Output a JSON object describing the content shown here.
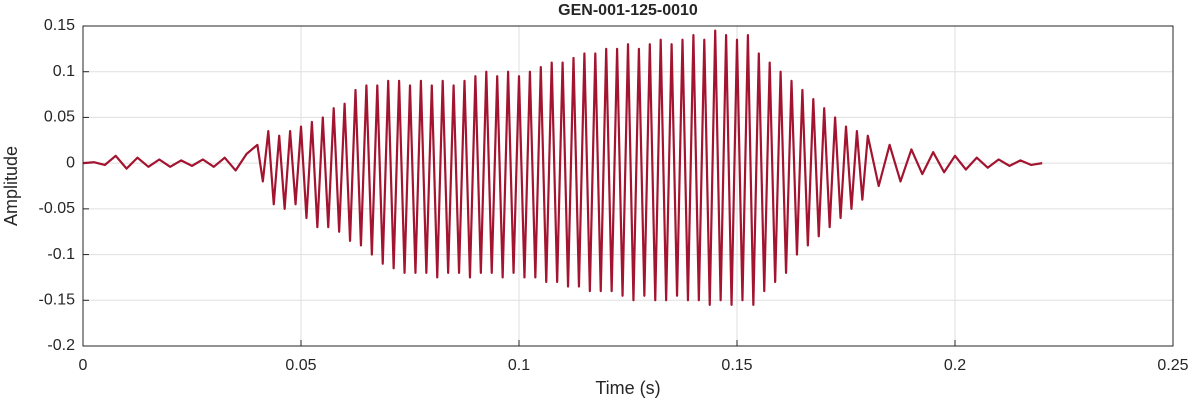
{
  "chart_data": {
    "type": "line",
    "title": "GEN-001-125-0010",
    "x_label": "Time (s)",
    "y_label": "Amplitude",
    "x": [
      0,
      0.0025,
      0.005,
      0.0075,
      0.01,
      0.0125,
      0.015,
      0.0175,
      0.02,
      0.0225,
      0.025,
      0.0275,
      0.03,
      0.0325,
      0.035,
      0.0375,
      0.04,
      0.04125,
      0.0425,
      0.04375,
      0.045,
      0.04625,
      0.0475,
      0.04875,
      0.05,
      0.05125,
      0.0525,
      0.05375,
      0.055,
      0.05625,
      0.0575,
      0.05875,
      0.06,
      0.06125,
      0.0625,
      0.06375,
      0.065,
      0.06625,
      0.0675,
      0.06875,
      0.07,
      0.07125,
      0.0725,
      0.07375,
      0.075,
      0.07625,
      0.0775,
      0.07875,
      0.08,
      0.08125,
      0.0825,
      0.08375,
      0.085,
      0.08625,
      0.0875,
      0.08875,
      0.09,
      0.09125,
      0.0925,
      0.09375,
      0.095,
      0.09625,
      0.0975,
      0.09875,
      0.1,
      0.10125,
      0.1025,
      0.10375,
      0.105,
      0.10625,
      0.1075,
      0.10875,
      0.11,
      0.11125,
      0.1125,
      0.11375,
      0.115,
      0.11625,
      0.1175,
      0.11875,
      0.12,
      0.12125,
      0.1225,
      0.12375,
      0.125,
      0.12625,
      0.1275,
      0.12875,
      0.13,
      0.13125,
      0.1325,
      0.13375,
      0.135,
      0.13625,
      0.1375,
      0.13875,
      0.14,
      0.14125,
      0.1425,
      0.14375,
      0.145,
      0.14625,
      0.1475,
      0.14875,
      0.15,
      0.15125,
      0.1525,
      0.15375,
      0.155,
      0.15625,
      0.1575,
      0.15875,
      0.16,
      0.16125,
      0.1625,
      0.16375,
      0.165,
      0.16625,
      0.1675,
      0.16875,
      0.17,
      0.17125,
      0.1725,
      0.17375,
      0.175,
      0.17625,
      0.1775,
      0.17875,
      0.18,
      0.1825,
      0.185,
      0.1875,
      0.19,
      0.1925,
      0.195,
      0.1975,
      0.2,
      0.2025,
      0.205,
      0.2075,
      0.21,
      0.2125,
      0.215,
      0.2175,
      0.22
    ],
    "series": [
      {
        "color": "#a2142f",
        "values": [
          0,
          0.001,
          -0.002,
          0.008,
          -0.006,
          0.006,
          -0.004,
          0.004,
          -0.004,
          0.003,
          -0.003,
          0.004,
          -0.004,
          0.006,
          -0.008,
          0.01,
          0.02,
          -0.02,
          0.035,
          -0.045,
          0.03,
          -0.05,
          0.035,
          -0.045,
          0.04,
          -0.06,
          0.045,
          -0.07,
          0.05,
          -0.07,
          0.06,
          -0.075,
          0.065,
          -0.085,
          0.08,
          -0.09,
          0.085,
          -0.1,
          0.085,
          -0.11,
          0.09,
          -0.115,
          0.09,
          -0.12,
          0.085,
          -0.12,
          0.09,
          -0.12,
          0.085,
          -0.125,
          0.09,
          -0.12,
          0.085,
          -0.12,
          0.09,
          -0.125,
          0.095,
          -0.12,
          0.1,
          -0.12,
          0.095,
          -0.125,
          0.1,
          -0.12,
          0.095,
          -0.125,
          0.1,
          -0.125,
          0.105,
          -0.13,
          0.11,
          -0.13,
          0.11,
          -0.135,
          0.115,
          -0.135,
          0.12,
          -0.14,
          0.12,
          -0.14,
          0.125,
          -0.14,
          0.125,
          -0.145,
          0.13,
          -0.15,
          0.125,
          -0.145,
          0.13,
          -0.15,
          0.135,
          -0.15,
          0.13,
          -0.145,
          0.135,
          -0.15,
          0.14,
          -0.15,
          0.135,
          -0.155,
          0.145,
          -0.15,
          0.14,
          -0.155,
          0.135,
          -0.15,
          0.14,
          -0.155,
          0.12,
          -0.14,
          0.11,
          -0.13,
          0.1,
          -0.12,
          0.09,
          -0.1,
          0.08,
          -0.09,
          0.07,
          -0.08,
          0.06,
          -0.07,
          0.05,
          -0.06,
          0.04,
          -0.05,
          0.035,
          -0.04,
          0.03,
          -0.025,
          0.02,
          -0.02,
          0.015,
          -0.012,
          0.012,
          -0.01,
          0.008,
          -0.007,
          0.006,
          -0.005,
          0.004,
          -0.003,
          0.003,
          -0.002,
          0
        ]
      }
    ],
    "xlim": [
      0,
      0.25
    ],
    "xticks": [
      0,
      0.05,
      0.1,
      0.15,
      0.2,
      0.25
    ],
    "ylim": [
      -0.2,
      0.15
    ],
    "yticks": [
      -0.2,
      -0.15,
      -0.1,
      -0.05,
      0,
      0.05,
      0.1,
      0.15
    ],
    "grid": true
  }
}
